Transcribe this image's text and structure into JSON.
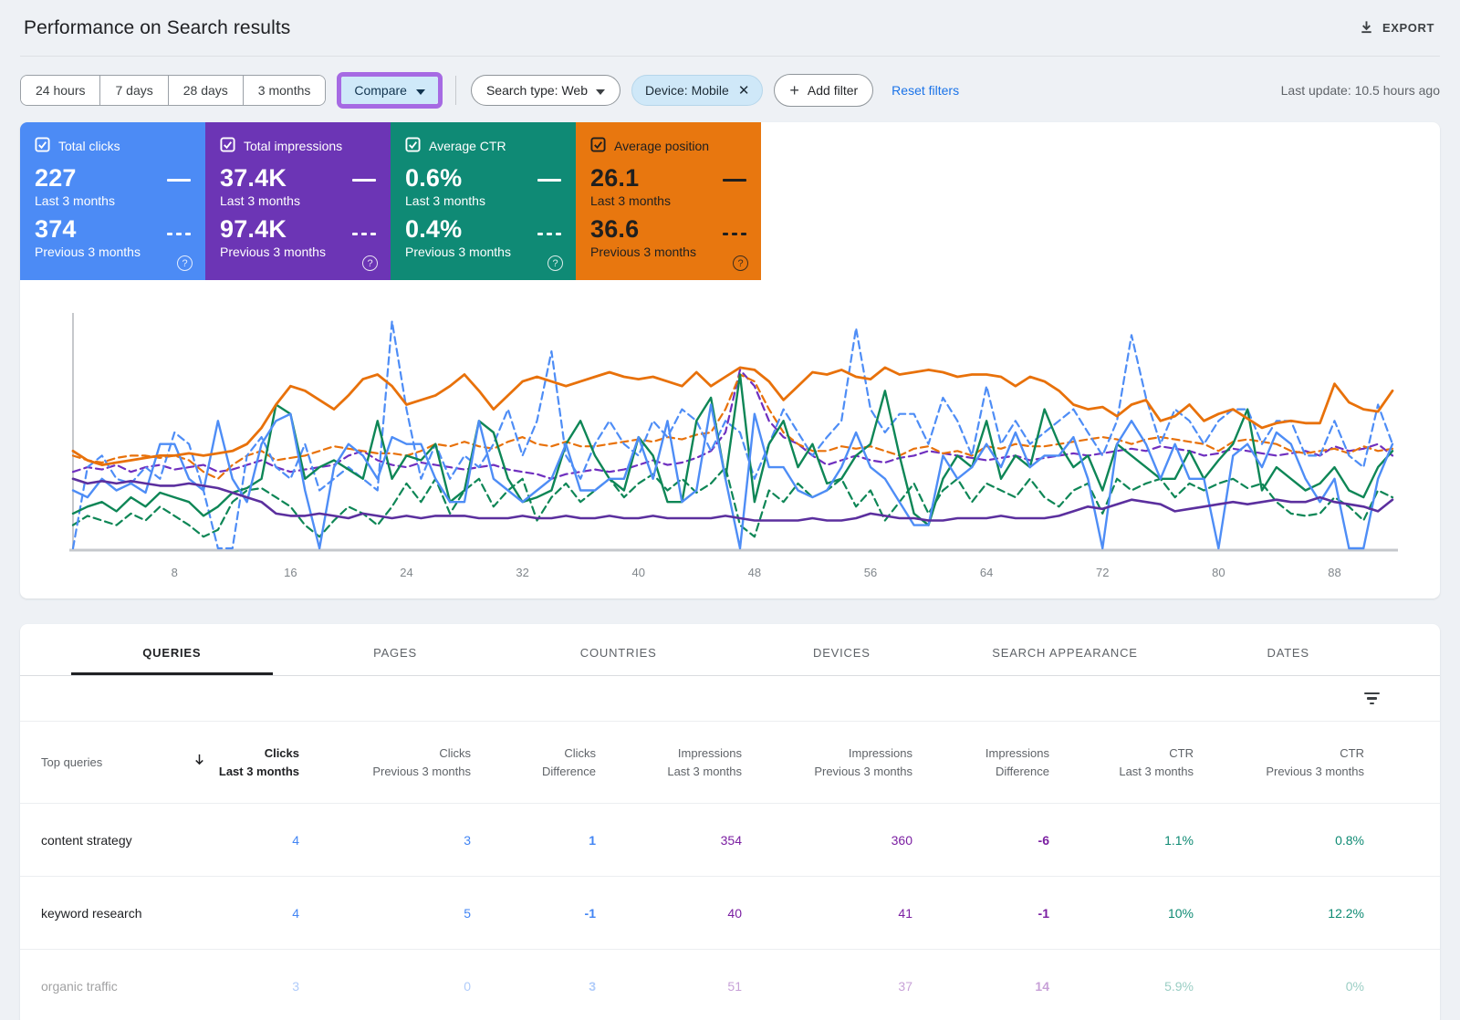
{
  "header": {
    "title": "Performance on Search results",
    "export_label": "EXPORT"
  },
  "filters": {
    "date_ranges": [
      "24 hours",
      "7 days",
      "28 days",
      "3 months"
    ],
    "compare_label": "Compare",
    "search_type": "Search type: Web",
    "device_chip": "Device: Mobile",
    "add_filter_label": "Add filter",
    "reset_filters_label": "Reset filters",
    "last_update": "Last update: 10.5 hours ago",
    "compare_highlight_color": "#a66ae3",
    "compare_fill_color": "#cfe9f9",
    "chip_fill_color": "#cfe8f8",
    "link_color": "#1a73e8"
  },
  "cards": [
    {
      "label": "Total clicks",
      "current": "227",
      "current_period": "Last 3 months",
      "previous": "374",
      "previous_period": "Previous 3 months",
      "color": "#4c8bf5",
      "text_color": "#ffffff"
    },
    {
      "label": "Total impressions",
      "current": "37.4K",
      "current_period": "Last 3 months",
      "previous": "97.4K",
      "previous_period": "Previous 3 months",
      "color": "#6c35b5",
      "text_color": "#ffffff"
    },
    {
      "label": "Average CTR",
      "current": "0.6%",
      "current_period": "Last 3 months",
      "previous": "0.4%",
      "previous_period": "Previous 3 months",
      "color": "#0f8a75",
      "text_color": "#ffffff"
    },
    {
      "label": "Average position",
      "current": "26.1",
      "current_period": "Last 3 months",
      "previous": "36.6",
      "previous_period": "Previous 3 months",
      "color": "#e8770f",
      "text_color": "#1f1f1f"
    }
  ],
  "chart_data": {
    "type": "line",
    "x_count": 92,
    "x_label_ticks": [
      8,
      16,
      24,
      32,
      40,
      48,
      56,
      64,
      72,
      80,
      88
    ],
    "y_note": "y axis unlabeled in UI; values are estimated percent of plot height (0=bottom, 100=top)",
    "legend_position": "none (metric cards act as legend: solid = Last 3 months, dashed = Previous 3 months)",
    "grid": "off",
    "series": [
      {
        "id": "ctr-previous",
        "name": "Average CTR - Previous 3 months",
        "color": "#0e8656",
        "style": "dashed",
        "width": 2.2,
        "values": [
          10,
          14,
          12,
          10,
          15,
          12,
          18,
          14,
          10,
          5,
          8,
          20,
          25,
          26,
          22,
          18,
          10,
          5,
          12,
          18,
          15,
          10,
          18,
          28,
          20,
          30,
          15,
          25,
          30,
          18,
          25,
          30,
          12,
          22,
          28,
          20,
          25,
          30,
          22,
          28,
          32,
          25,
          30,
          24,
          28,
          35,
          10,
          5,
          25,
          20,
          28,
          22,
          25,
          30,
          18,
          25,
          12,
          20,
          28,
          15,
          25,
          30,
          20,
          28,
          25,
          22,
          30,
          22,
          18,
          25,
          28,
          15,
          30,
          25,
          28,
          30,
          22,
          28,
          25,
          28,
          30,
          26,
          28,
          20,
          15,
          14,
          15,
          22,
          18,
          12,
          25,
          22
        ]
      },
      {
        "id": "impressions-previous",
        "name": "Total impressions - Previous 3 months",
        "color": "#6f2fbf",
        "style": "dashed",
        "width": 2.2,
        "values": [
          33,
          35,
          34,
          36,
          33,
          35,
          36,
          34,
          35,
          36,
          33,
          34,
          36,
          38,
          35,
          33,
          34,
          35,
          36,
          40,
          42,
          38,
          36,
          35,
          37,
          36,
          35,
          34,
          35,
          36,
          34,
          33,
          32,
          30,
          32,
          33,
          34,
          33,
          34,
          36,
          38,
          36,
          37,
          39,
          42,
          50,
          77,
          70,
          55,
          48,
          45,
          40,
          36,
          38,
          40,
          38,
          37,
          39,
          40,
          42,
          41,
          40,
          39,
          38,
          39,
          40,
          38,
          39,
          40,
          41,
          40,
          41,
          42,
          43,
          42,
          44,
          43,
          42,
          40,
          41,
          43,
          42,
          41,
          40,
          41,
          42,
          40,
          44,
          42,
          43,
          45,
          40
        ]
      },
      {
        "id": "position-previous",
        "name": "Average position - Previous 3 months",
        "color": "#e8710a",
        "style": "dashed",
        "width": 2.2,
        "values": [
          40,
          38,
          37,
          39,
          40,
          40,
          39,
          40,
          38,
          33,
          30,
          36,
          40,
          42,
          38,
          39,
          40,
          42,
          44,
          43,
          42,
          41,
          41,
          40,
          42,
          45,
          44,
          46,
          44,
          43,
          46,
          48,
          45,
          44,
          46,
          44,
          44,
          45,
          46,
          47,
          46,
          48,
          47,
          49,
          50,
          60,
          75,
          72,
          60,
          50,
          45,
          42,
          42,
          44,
          43,
          44,
          42,
          40,
          43,
          44,
          41,
          42,
          40,
          44,
          43,
          45,
          44,
          44,
          45,
          46,
          47,
          48,
          47,
          45,
          47,
          48,
          47,
          46,
          45,
          42,
          46,
          47,
          46,
          45,
          42,
          41,
          42,
          43,
          41,
          44,
          42,
          43
        ]
      },
      {
        "id": "clicks-previous",
        "name": "Total clicks - Previous 3 months",
        "color": "#4e8df6",
        "style": "dashed",
        "width": 2.2,
        "values": [
          0,
          35,
          40,
          30,
          28,
          35,
          30,
          50,
          45,
          25,
          0,
          0,
          40,
          48,
          35,
          30,
          45,
          25,
          30,
          35,
          30,
          25,
          98,
          60,
          30,
          45,
          30,
          40,
          35,
          45,
          60,
          40,
          55,
          85,
          40,
          30,
          45,
          55,
          45,
          40,
          55,
          48,
          60,
          55,
          42,
          55,
          50,
          30,
          45,
          60,
          50,
          40,
          48,
          55,
          95,
          60,
          50,
          58,
          58,
          45,
          65,
          55,
          40,
          70,
          45,
          55,
          45,
          50,
          55,
          60,
          50,
          40,
          55,
          92,
          65,
          45,
          60,
          55,
          45,
          55,
          60,
          60,
          45,
          55,
          55,
          40,
          40,
          55,
          40,
          35,
          62,
          45
        ]
      },
      {
        "id": "ctr-last",
        "name": "Average CTR - Last 3 months",
        "color": "#0e8656",
        "style": "solid",
        "width": 2.4,
        "values": [
          15,
          18,
          20,
          16,
          22,
          18,
          24,
          22,
          20,
          14,
          18,
          24,
          26,
          30,
          62,
          58,
          30,
          35,
          38,
          34,
          30,
          55,
          30,
          40,
          38,
          45,
          20,
          25,
          55,
          50,
          30,
          20,
          22,
          25,
          45,
          55,
          40,
          30,
          25,
          48,
          40,
          20,
          20,
          55,
          65,
          30,
          75,
          20,
          45,
          55,
          35,
          45,
          28,
          30,
          40,
          45,
          68,
          40,
          15,
          10,
          30,
          40,
          35,
          55,
          30,
          40,
          35,
          60,
          45,
          35,
          40,
          25,
          45,
          40,
          35,
          30,
          30,
          42,
          30,
          38,
          45,
          60,
          25,
          35,
          30,
          25,
          28,
          35,
          25,
          22,
          35,
          42
        ]
      },
      {
        "id": "clicks-last",
        "name": "Total clicks - Last 3 months",
        "color": "#4e8df6",
        "style": "solid",
        "width": 2.4,
        "values": [
          25,
          22,
          30,
          25,
          28,
          24,
          45,
          45,
          30,
          25,
          55,
          30,
          20,
          45,
          55,
          58,
          25,
          0,
          35,
          45,
          40,
          30,
          48,
          45,
          45,
          30,
          20,
          20,
          55,
          30,
          25,
          20,
          25,
          30,
          45,
          25,
          25,
          30,
          30,
          48,
          30,
          55,
          20,
          25,
          62,
          30,
          0,
          58,
          35,
          35,
          25,
          22,
          25,
          35,
          50,
          35,
          30,
          20,
          10,
          10,
          40,
          30,
          35,
          45,
          35,
          50,
          35,
          40,
          40,
          48,
          30,
          0,
          45,
          55,
          45,
          30,
          45,
          30,
          30,
          0,
          40,
          45,
          35,
          50,
          45,
          30,
          20,
          30,
          0,
          0,
          30,
          45
        ]
      },
      {
        "id": "impressions-last",
        "name": "Total impressions - Last 3 months",
        "color": "#5b2f9e",
        "style": "solid",
        "width": 2.6,
        "values": [
          30,
          28,
          29,
          28,
          29,
          28,
          27,
          27,
          28,
          27,
          26,
          24,
          22,
          20,
          15,
          14,
          14,
          15,
          14,
          13,
          15,
          14,
          13,
          14,
          13,
          14,
          14,
          14,
          13,
          13,
          13,
          14,
          13,
          13,
          14,
          13,
          13,
          14,
          13,
          13,
          14,
          13,
          13,
          13,
          13,
          14,
          13,
          12,
          12,
          12,
          12,
          13,
          12,
          12,
          13,
          15,
          14,
          13,
          13,
          12,
          12,
          13,
          13,
          13,
          14,
          13,
          13,
          13,
          14,
          16,
          18,
          17,
          19,
          21,
          20,
          19,
          16,
          17,
          18,
          19,
          20,
          19,
          20,
          21,
          20,
          20,
          22,
          20,
          19,
          18,
          16,
          21
        ]
      },
      {
        "id": "position-last",
        "name": "Average position - Last 3 months",
        "color": "#e8710a",
        "style": "solid",
        "width": 2.8,
        "values": [
          42,
          38,
          36,
          37,
          38,
          39,
          40,
          40,
          41,
          40,
          41,
          42,
          45,
          52,
          62,
          70,
          68,
          64,
          60,
          66,
          73,
          75,
          70,
          62,
          64,
          66,
          70,
          75,
          68,
          60,
          66,
          72,
          74,
          72,
          70,
          72,
          74,
          76,
          74,
          73,
          74,
          72,
          70,
          76,
          70,
          74,
          78,
          77,
          72,
          64,
          70,
          76,
          75,
          77,
          74,
          73,
          78,
          75,
          76,
          77,
          76,
          74,
          75,
          75,
          74,
          70,
          74,
          72,
          68,
          62,
          60,
          61,
          57,
          62,
          64,
          55,
          57,
          62,
          55,
          58,
          60,
          56,
          52,
          54,
          55,
          54,
          54,
          71,
          63,
          60,
          59,
          68
        ]
      }
    ]
  },
  "tabs": {
    "items": [
      "QUERIES",
      "PAGES",
      "COUNTRIES",
      "DEVICES",
      "SEARCH APPEARANCE",
      "DATES"
    ],
    "active": "QUERIES"
  },
  "table": {
    "row_header": "Top queries",
    "value_colors": {
      "clicks": "#4285f4",
      "impressions": "#7b1fa2",
      "ctr": "#0e8a73"
    },
    "columns": [
      {
        "metric": "Clicks",
        "period": "Last 3 months",
        "group": "clicks",
        "sorted": true,
        "bold": false
      },
      {
        "metric": "Clicks",
        "period": "Previous 3 months",
        "group": "clicks",
        "sorted": false,
        "bold": false
      },
      {
        "metric": "Clicks",
        "period": "Difference",
        "group": "clicks",
        "sorted": false,
        "bold": true
      },
      {
        "metric": "Impressions",
        "period": "Last 3 months",
        "group": "impressions",
        "sorted": false,
        "bold": false
      },
      {
        "metric": "Impressions",
        "period": "Previous 3 months",
        "group": "impressions",
        "sorted": false,
        "bold": false
      },
      {
        "metric": "Impressions",
        "period": "Difference",
        "group": "impressions",
        "sorted": false,
        "bold": true
      },
      {
        "metric": "CTR",
        "period": "Last 3 months",
        "group": "ctr",
        "sorted": false,
        "bold": false
      },
      {
        "metric": "CTR",
        "period": "Previous 3 months",
        "group": "ctr",
        "sorted": false,
        "bold": false
      }
    ],
    "rows": [
      {
        "query": "content strategy",
        "values": [
          "4",
          "3",
          "1",
          "354",
          "360",
          "-6",
          "1.1%",
          "0.8%"
        ],
        "faded": false
      },
      {
        "query": "keyword research",
        "values": [
          "4",
          "5",
          "-1",
          "40",
          "41",
          "-1",
          "10%",
          "12.2%"
        ],
        "faded": false
      },
      {
        "query": "organic traffic",
        "values": [
          "3",
          "0",
          "3",
          "51",
          "37",
          "14",
          "5.9%",
          "0%"
        ],
        "faded": true
      }
    ]
  }
}
